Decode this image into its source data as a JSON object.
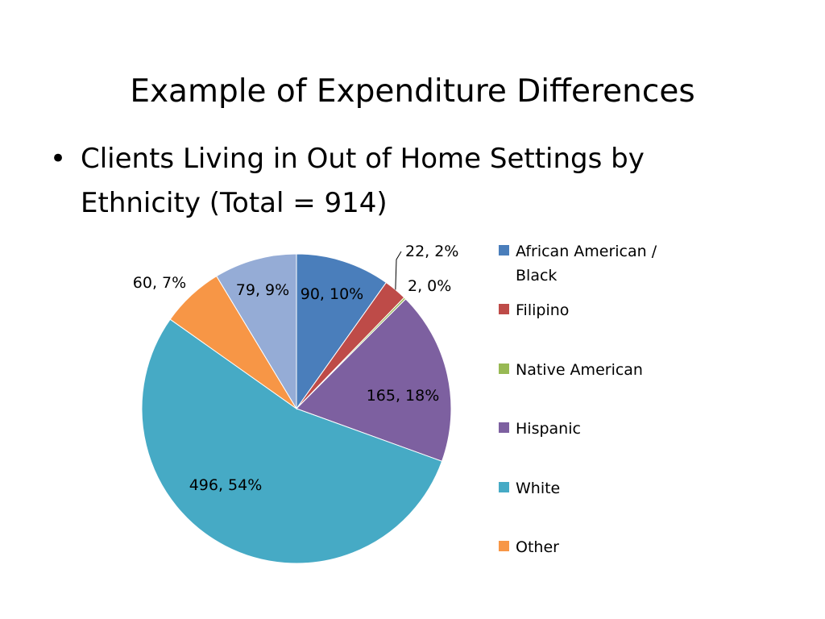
{
  "slide": {
    "title": "Example of Expenditure Differences",
    "bullet": "•",
    "bullet_text": "Clients Living in Out of Home Settings by Ethnicity (Total = 914)"
  },
  "chart_data": {
    "type": "pie",
    "categories": [
      "African American / Black",
      "Filipino",
      "Native American",
      "Hispanic",
      "White",
      "Other",
      ""
    ],
    "values": [
      90,
      22,
      2,
      165,
      496,
      60,
      79
    ],
    "data_labels": [
      "90, 10%",
      "22, 2%",
      "2, 0%",
      "165, 18%",
      "496, 54%",
      "60, 7%",
      "79, 9%"
    ],
    "colors": [
      "#4A7EBB",
      "#BE4B48",
      "#98B954",
      "#7D60A0",
      "#46AAC5",
      "#F79646",
      "#95ACD6"
    ],
    "legend": {
      "placement": "right",
      "entries": [
        "African American / Black",
        "Filipino",
        "Native American",
        "Hispanic",
        "White",
        "Other"
      ]
    },
    "start_angle_deg": 0,
    "direction": "clockwise"
  }
}
